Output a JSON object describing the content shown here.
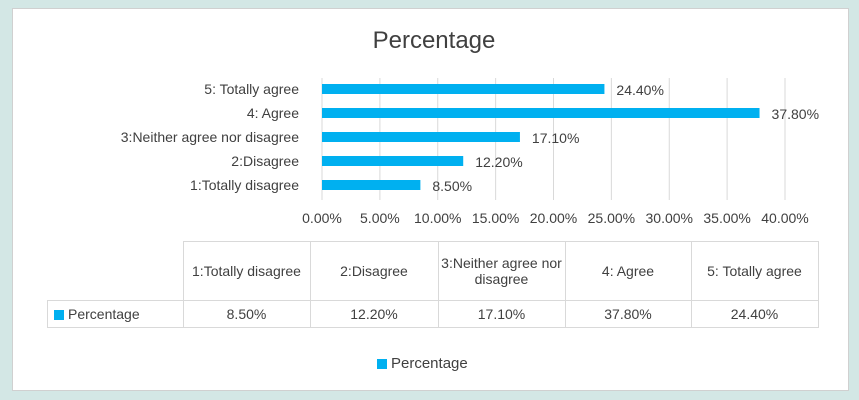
{
  "chart_data": {
    "type": "bar",
    "orientation": "horizontal",
    "title": "Percentage",
    "categories": [
      "1:Totally disagree",
      "2:Disagree",
      "3:Neither agree nor disagree",
      "4: Agree",
      "5: Totally agree"
    ],
    "series": [
      {
        "name": "Percentage",
        "values": [
          8.5,
          12.2,
          17.1,
          37.8,
          24.4
        ],
        "labels": [
          "8.50%",
          "12.20%",
          "17.10%",
          "37.80%",
          "24.40%"
        ]
      }
    ],
    "xlim": [
      0,
      40
    ],
    "xticks": [
      "0.00%",
      "5.00%",
      "10.00%",
      "15.00%",
      "20.00%",
      "25.00%",
      "30.00%",
      "35.00%",
      "40.00%"
    ],
    "grid": true,
    "legend": "bottom",
    "color": "#00b0f0",
    "table": {
      "headers": [
        "1:Totally disagree",
        "2:Disagree",
        "3:Neither agree nor disagree",
        "4: Agree",
        "5: Totally agree"
      ],
      "row_label": "Percentage",
      "values": [
        "8.50%",
        "12.20%",
        "17.10%",
        "37.80%",
        "24.40%"
      ]
    }
  }
}
